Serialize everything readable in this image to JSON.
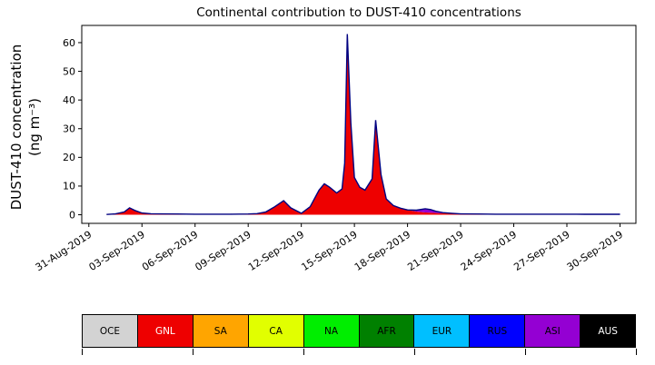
{
  "title": "Continental contribution to DUST-410 concentrations",
  "y_axis": {
    "label_line1": "DUST-410 concentration",
    "label_line2": "(ng m⁻³)"
  },
  "chart_data": {
    "type": "area",
    "stacked": true,
    "title": "Continental contribution to DUST-410 concentrations",
    "ylabel": "DUST-410 concentration (ng m⁻³)",
    "xlabel": "",
    "x_unit": "days since 31-Aug-2019",
    "xlim": [
      -0.4,
      30.9
    ],
    "ylim": [
      -3,
      66
    ],
    "grid": false,
    "legend_position": "bottom",
    "yticks": [
      0,
      10,
      20,
      30,
      40,
      50,
      60
    ],
    "xtick_days": [
      0,
      3,
      6,
      9,
      12,
      15,
      18,
      21,
      24,
      27,
      30
    ],
    "xtick_labels": [
      "31-Aug-2019",
      "03-Sep-2019",
      "06-Sep-2019",
      "09-Sep-2019",
      "12-Sep-2019",
      "15-Sep-2019",
      "18-Sep-2019",
      "21-Sep-2019",
      "24-Sep-2019",
      "27-Sep-2019",
      "30-Sep-2019"
    ],
    "x_days": [
      1,
      1.5,
      2,
      2.3,
      2.6,
      3,
      3.5,
      4,
      5,
      6,
      7,
      8,
      9,
      9.5,
      10,
      10.5,
      11,
      11.4,
      12,
      12.5,
      13,
      13.3,
      13.6,
      14,
      14.3,
      14.45,
      14.6,
      14.8,
      15,
      15.3,
      15.6,
      16,
      16.2,
      16.5,
      16.8,
      17.2,
      17.6,
      18,
      18.5,
      19,
      19.3,
      19.6,
      20,
      20.5,
      21,
      22,
      23,
      24,
      25,
      26,
      28,
      30
    ],
    "series": [
      {
        "name": "GNL",
        "color": "#ee0000",
        "values": [
          0.1,
          0.3,
          1.0,
          2.4,
          1.5,
          0.6,
          0.35,
          0.3,
          0.25,
          0.2,
          0.2,
          0.2,
          0.25,
          0.4,
          1.0,
          2.8,
          4.9,
          2.4,
          0.5,
          2.8,
          8.6,
          10.8,
          9.6,
          7.6,
          9.0,
          18,
          63,
          32,
          13,
          9.6,
          8.6,
          12.5,
          33,
          14,
          5.5,
          3.2,
          2.3,
          1.7,
          1.1,
          0.8,
          0.7,
          0.6,
          0.5,
          0.4,
          0.3,
          0.25,
          0.2,
          0.2,
          0.2,
          0.2,
          0.15,
          0.15
        ]
      },
      {
        "name": "ASI",
        "color": "#9400d3",
        "values": [
          0,
          0,
          0,
          0,
          0,
          0,
          0,
          0,
          0,
          0,
          0,
          0,
          0,
          0,
          0,
          0,
          0,
          0,
          0,
          0,
          0,
          0,
          0,
          0,
          0,
          0,
          0,
          0,
          0,
          0,
          0,
          0,
          0,
          0,
          0,
          0,
          0,
          0,
          0.5,
          1.3,
          1.1,
          0.6,
          0.25,
          0.1,
          0,
          0,
          0,
          0,
          0,
          0,
          0,
          0
        ]
      }
    ],
    "total_outline_color": "#000080"
  },
  "legend": {
    "items": [
      {
        "label": "OCE",
        "color": "#d3d3d3",
        "text": "#000000"
      },
      {
        "label": "GNL",
        "color": "#ee0000",
        "text": "#ffffff"
      },
      {
        "label": "SA",
        "color": "#ffa500",
        "text": "#000000"
      },
      {
        "label": "CA",
        "color": "#e1ff00",
        "text": "#000000"
      },
      {
        "label": "NA",
        "color": "#00ee00",
        "text": "#000000"
      },
      {
        "label": "AFR",
        "color": "#008000",
        "text": "#000000"
      },
      {
        "label": "EUR",
        "color": "#00bfff",
        "text": "#000000"
      },
      {
        "label": "RUS",
        "color": "#0000ff",
        "text": "#000000"
      },
      {
        "label": "ASI",
        "color": "#9400d3",
        "text": "#000000"
      },
      {
        "label": "AUS",
        "color": "#000000",
        "text": "#ffffff"
      }
    ]
  }
}
